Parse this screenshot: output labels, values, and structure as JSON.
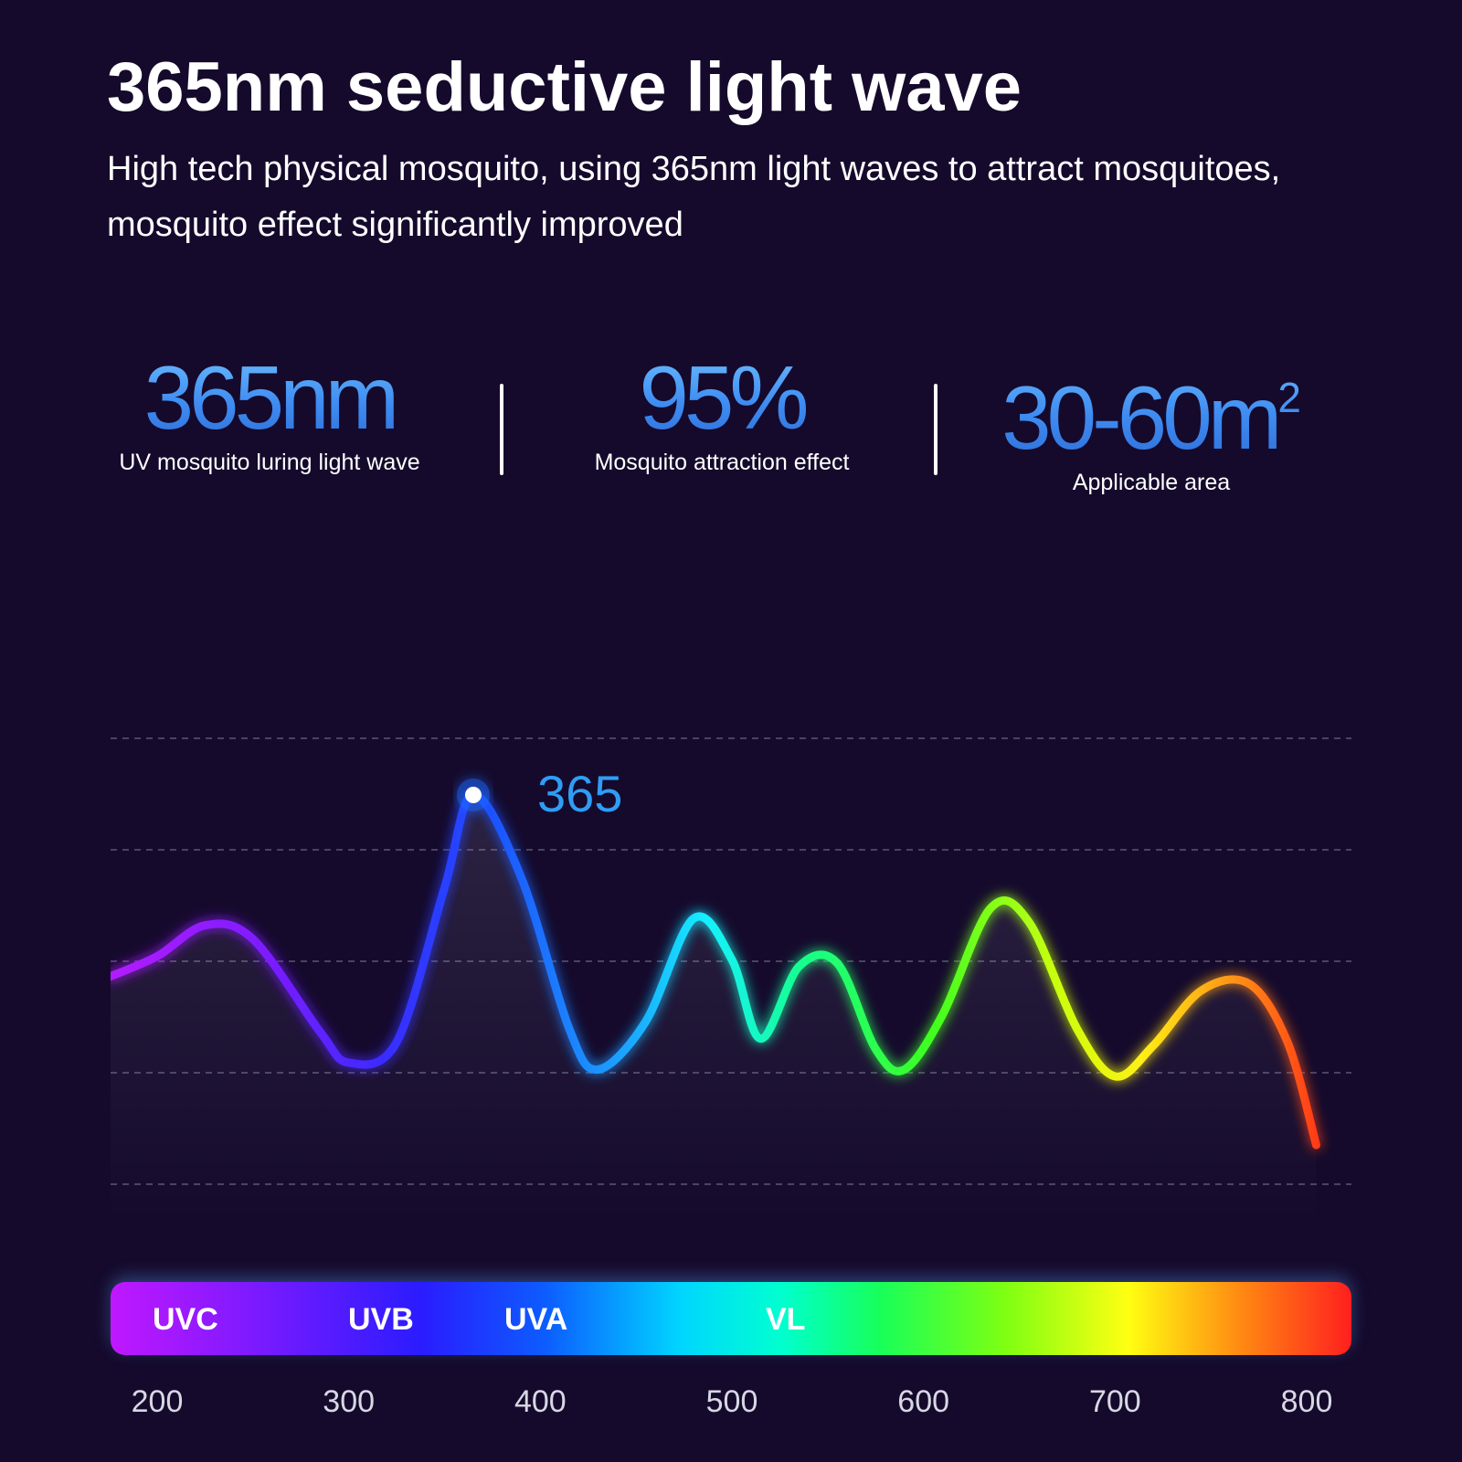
{
  "header": {
    "title": "365nm seductive light wave",
    "subtitle": "High tech physical mosquito, using 365nm light waves to attract mosquitoes, mosquito effect significantly improved"
  },
  "stats": [
    {
      "value": "365nm",
      "label": "UV mosquito luring light wave"
    },
    {
      "value": "95%",
      "label": "Mosquito attraction effect"
    },
    {
      "value": "30-60m",
      "sup": "2",
      "label": "Applicable area"
    }
  ],
  "chart_data": {
    "type": "line",
    "title": "",
    "xlabel": "",
    "ylabel": "",
    "x_ticks": [
      200,
      300,
      400,
      500,
      600,
      700,
      800
    ],
    "xlim": [
      200,
      800
    ],
    "grid": true,
    "bands": [
      "UVC",
      "UVB",
      "UVA",
      "VL"
    ],
    "annotation": {
      "x": 365,
      "label": "365"
    },
    "series": [
      {
        "x": [
          175,
          200,
          225,
          250,
          285,
          300,
          325,
          350,
          365,
          390,
          415,
          430,
          455,
          480,
          500,
          515,
          535,
          555,
          575,
          590,
          610,
          635,
          655,
          680,
          700,
          720,
          745,
          770,
          790,
          805
        ],
        "y": [
          0.29,
          0.35,
          0.44,
          0.4,
          0.13,
          0.04,
          0.1,
          0.55,
          0.82,
          0.58,
          0.14,
          0.02,
          0.16,
          0.46,
          0.34,
          0.11,
          0.32,
          0.33,
          0.08,
          0.02,
          0.18,
          0.49,
          0.45,
          0.14,
          0.0,
          0.09,
          0.25,
          0.27,
          0.1,
          -0.2
        ]
      }
    ]
  },
  "colors": {
    "background": "#150a2c",
    "accent": "#3f8df2"
  }
}
